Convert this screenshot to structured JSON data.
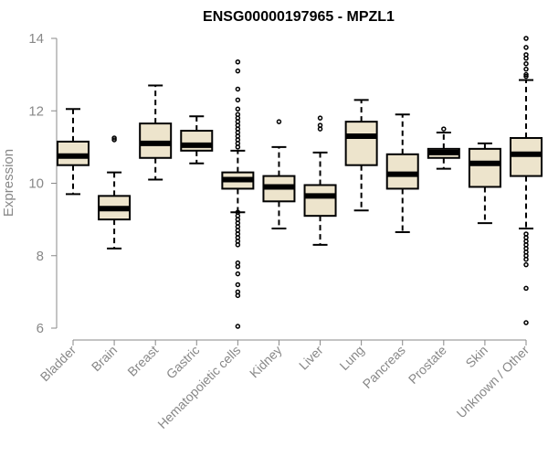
{
  "chart_data": {
    "type": "boxplot",
    "title": "ENSG00000197965 - MPZL1",
    "xlabel": "",
    "ylabel": "Expression",
    "ylim": [
      6,
      14
    ],
    "yticks": [
      6,
      8,
      10,
      12,
      14
    ],
    "categories": [
      "Bladder",
      "Brain",
      "Breast",
      "Gastric",
      "Hematopoietic cells",
      "Kidney",
      "Liver",
      "Lung",
      "Pancreas",
      "Prostate",
      "Skin",
      "Unknown / Other"
    ],
    "boxes": [
      {
        "name": "Bladder",
        "whisker_low": 9.7,
        "q1": 10.5,
        "median": 10.75,
        "q3": 11.15,
        "whisker_high": 12.05,
        "outliers": []
      },
      {
        "name": "Brain",
        "whisker_low": 8.2,
        "q1": 9.0,
        "median": 9.3,
        "q3": 9.65,
        "whisker_high": 10.3,
        "outliers": [
          11.2,
          11.25
        ]
      },
      {
        "name": "Breast",
        "whisker_low": 10.1,
        "q1": 10.7,
        "median": 11.1,
        "q3": 11.65,
        "whisker_high": 12.7,
        "outliers": []
      },
      {
        "name": "Gastric",
        "whisker_low": 10.55,
        "q1": 10.9,
        "median": 11.05,
        "q3": 11.45,
        "whisker_high": 11.85,
        "outliers": []
      },
      {
        "name": "Hematopoietic cells",
        "whisker_low": 9.2,
        "q1": 9.85,
        "median": 10.1,
        "q3": 10.3,
        "whisker_high": 10.9,
        "outliers": [
          13.35,
          13.1,
          12.6,
          12.3,
          12.05,
          11.9,
          11.8,
          11.7,
          11.6,
          11.5,
          11.4,
          11.3,
          11.2,
          11.1,
          11.0,
          9.2,
          9.1,
          9.0,
          8.9,
          8.8,
          8.7,
          8.6,
          8.5,
          8.4,
          8.3,
          7.8,
          7.7,
          7.5,
          7.2,
          7.0,
          6.9,
          6.05
        ]
      },
      {
        "name": "Kidney",
        "whisker_low": 8.75,
        "q1": 9.5,
        "median": 9.9,
        "q3": 10.2,
        "whisker_high": 11.0,
        "outliers": [
          11.7
        ]
      },
      {
        "name": "Liver",
        "whisker_low": 8.3,
        "q1": 9.1,
        "median": 9.65,
        "q3": 9.95,
        "whisker_high": 10.85,
        "outliers": [
          11.5,
          11.6,
          11.8
        ]
      },
      {
        "name": "Lung",
        "whisker_low": 9.25,
        "q1": 10.5,
        "median": 11.3,
        "q3": 11.7,
        "whisker_high": 12.3,
        "outliers": []
      },
      {
        "name": "Pancreas",
        "whisker_low": 8.65,
        "q1": 9.85,
        "median": 10.25,
        "q3": 10.8,
        "whisker_high": 11.9,
        "outliers": []
      },
      {
        "name": "Prostate",
        "whisker_low": 10.4,
        "q1": 10.7,
        "median": 10.85,
        "q3": 10.95,
        "whisker_high": 11.4,
        "outliers": [
          11.5
        ]
      },
      {
        "name": "Skin",
        "whisker_low": 8.9,
        "q1": 9.9,
        "median": 10.55,
        "q3": 10.95,
        "whisker_high": 11.1,
        "outliers": []
      },
      {
        "name": "Unknown / Other",
        "whisker_low": 8.75,
        "q1": 10.2,
        "median": 10.8,
        "q3": 11.25,
        "whisker_high": 12.85,
        "outliers": [
          14.0,
          13.75,
          13.55,
          13.45,
          13.3,
          13.15,
          13.0,
          12.95,
          8.6,
          8.5,
          8.4,
          8.3,
          8.2,
          8.1,
          8.0,
          7.9,
          7.75,
          7.1,
          6.15
        ]
      }
    ],
    "colors": {
      "box_fill": "#ede4cc",
      "box_stroke": "#000000",
      "median": "#000000",
      "axis": "#888888",
      "title": "#000000"
    },
    "grid": false,
    "legend": "none"
  }
}
